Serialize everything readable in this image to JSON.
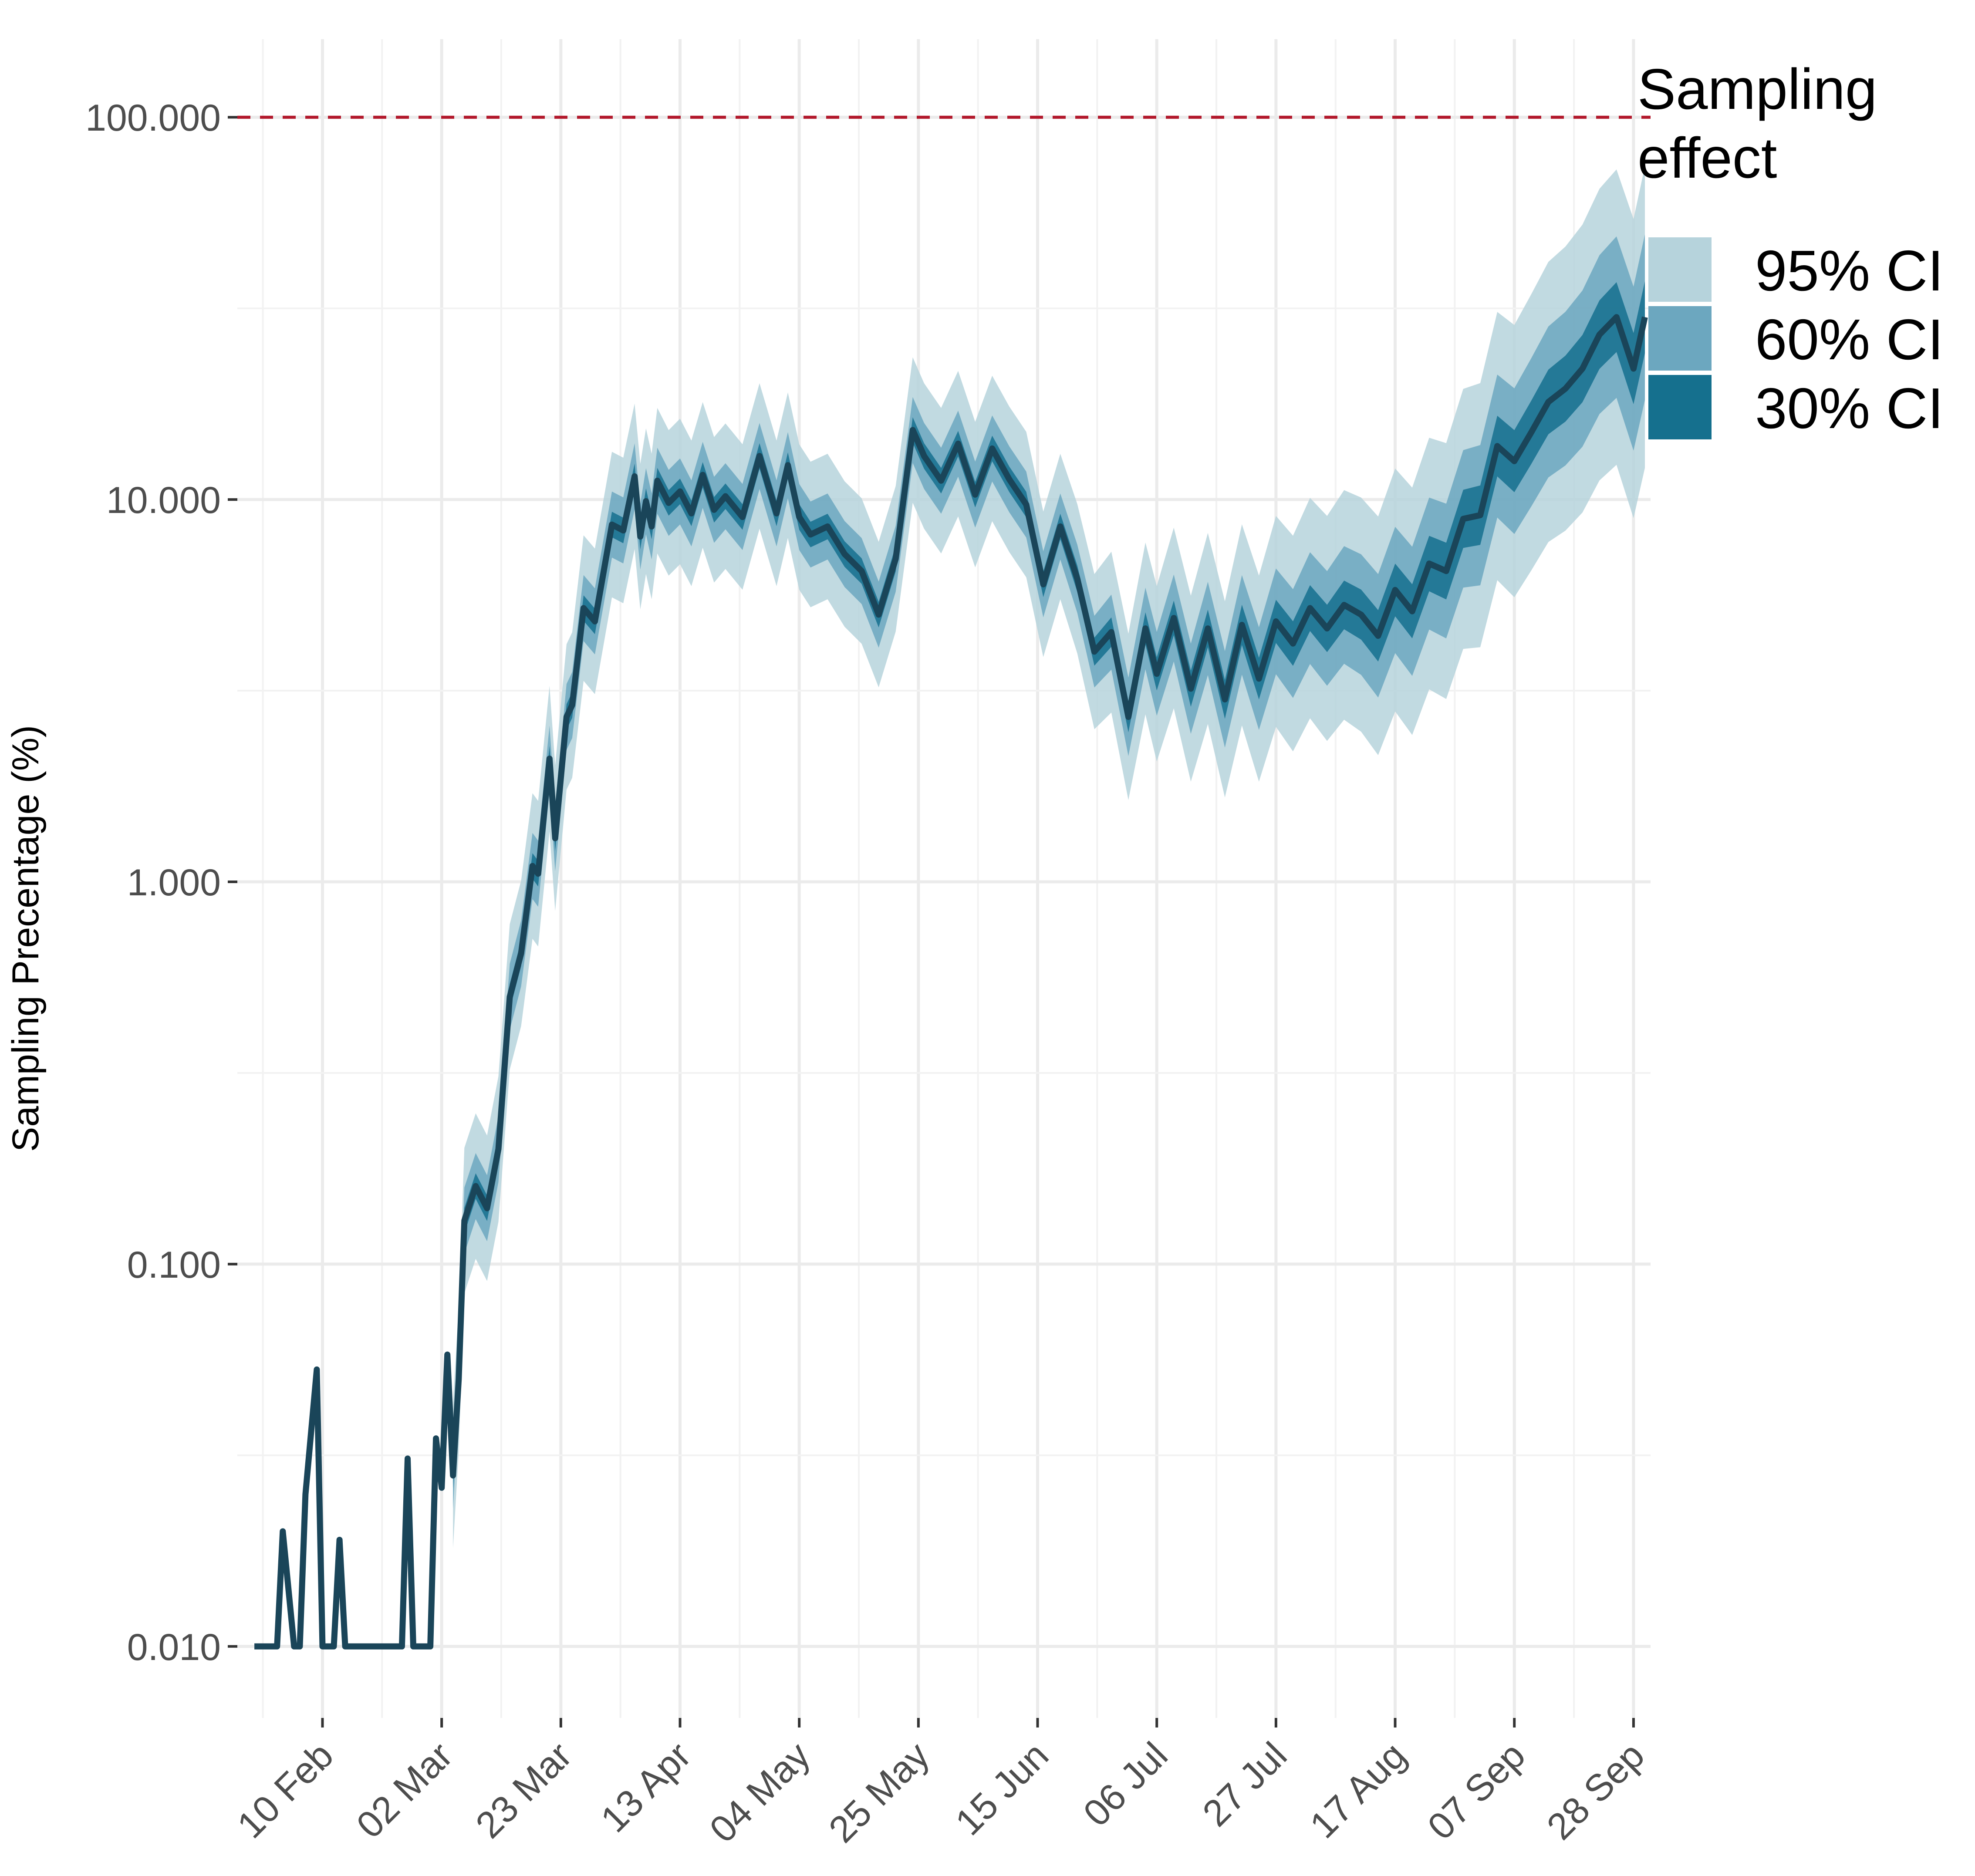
{
  "chart_data": {
    "type": "area",
    "title": "",
    "xlabel": "",
    "ylabel": "Sampling Precentage (%)",
    "y_scale": "log10",
    "ylim": [
      0.0065,
      160
    ],
    "xlim": [
      "2020-01-26",
      "2020-10-01"
    ],
    "y_ticks": [
      0.01,
      0.1,
      1,
      10,
      100
    ],
    "y_tick_labels": [
      "0.010",
      "0.100",
      "1.000",
      "10.000",
      "100.000"
    ],
    "x_ticks": [
      "2020-02-10",
      "2020-03-02",
      "2020-03-23",
      "2020-04-13",
      "2020-05-04",
      "2020-05-25",
      "2020-06-15",
      "2020-07-06",
      "2020-07-27",
      "2020-08-17",
      "2020-09-07",
      "2020-09-28"
    ],
    "x_tick_labels": [
      "10 Feb",
      "02 Mar",
      "23 Mar",
      "13 Apr",
      "04 May",
      "25 May",
      "15 Jun",
      "06 Jul",
      "27 Jul",
      "17 Aug",
      "07 Sep",
      "28 Sep"
    ],
    "grid": true,
    "reference_line": {
      "y": 100,
      "style": "dashed",
      "color": "#b2182b"
    },
    "legend": {
      "title": "Sampling\neffect",
      "position": "right",
      "entries": [
        {
          "label": "95% CI",
          "color": "#b6d3dc"
        },
        {
          "label": "60% CI",
          "color": "#6ca7bf"
        },
        {
          "label": "30% CI",
          "color": "#15708e"
        }
      ]
    },
    "colors": {
      "line": "#1a4559",
      "early_line": "#163140",
      "band95": "#b6d3dc",
      "band60": "#6ca7bf",
      "band30": "#15708e"
    },
    "series": [
      {
        "name": "median",
        "x": [
          "2020-01-29",
          "2020-02-02",
          "2020-02-03",
          "2020-02-05",
          "2020-02-06",
          "2020-02-07",
          "2020-02-09",
          "2020-02-10",
          "2020-02-12",
          "2020-02-13",
          "2020-02-14",
          "2020-02-15",
          "2020-02-16",
          "2020-02-18",
          "2020-02-20",
          "2020-02-22",
          "2020-02-24",
          "2020-02-25",
          "2020-02-26",
          "2020-02-27",
          "2020-02-28",
          "2020-02-29",
          "2020-03-01",
          "2020-03-02",
          "2020-03-03",
          "2020-03-04",
          "2020-03-05",
          "2020-03-06",
          "2020-03-08",
          "2020-03-10",
          "2020-03-12",
          "2020-03-14",
          "2020-03-16",
          "2020-03-18",
          "2020-03-19",
          "2020-03-21",
          "2020-03-22",
          "2020-03-24",
          "2020-03-25",
          "2020-03-27",
          "2020-03-29",
          "2020-04-01",
          "2020-04-03",
          "2020-04-05",
          "2020-04-06",
          "2020-04-07",
          "2020-04-08",
          "2020-04-09",
          "2020-04-11",
          "2020-04-13",
          "2020-04-15",
          "2020-04-17",
          "2020-04-19",
          "2020-04-21",
          "2020-04-24",
          "2020-04-27",
          "2020-04-30",
          "2020-05-02",
          "2020-05-04",
          "2020-05-06",
          "2020-05-09",
          "2020-05-12",
          "2020-05-15",
          "2020-05-18",
          "2020-05-21",
          "2020-05-24",
          "2020-05-26",
          "2020-05-29",
          "2020-06-01",
          "2020-06-04",
          "2020-06-07",
          "2020-06-10",
          "2020-06-13",
          "2020-06-16",
          "2020-06-19",
          "2020-06-22",
          "2020-06-25",
          "2020-06-28",
          "2020-07-01",
          "2020-07-04",
          "2020-07-06",
          "2020-07-09",
          "2020-07-12",
          "2020-07-15",
          "2020-07-18",
          "2020-07-21",
          "2020-07-24",
          "2020-07-27",
          "2020-07-30",
          "2020-08-02",
          "2020-08-05",
          "2020-08-08",
          "2020-08-11",
          "2020-08-14",
          "2020-08-17",
          "2020-08-20",
          "2020-08-23",
          "2020-08-26",
          "2020-08-29",
          "2020-09-01",
          "2020-09-04",
          "2020-09-07",
          "2020-09-10",
          "2020-09-13",
          "2020-09-16",
          "2020-09-19",
          "2020-09-22",
          "2020-09-25",
          "2020-09-28",
          "2020-09-30"
        ],
        "values": [
          0.01,
          0.01,
          0.02,
          0.01,
          0.01,
          0.025,
          0.053,
          0.01,
          0.01,
          0.019,
          0.01,
          0.01,
          0.01,
          0.01,
          0.01,
          0.01,
          0.01,
          0.031,
          0.01,
          0.01,
          0.01,
          0.01,
          0.035,
          0.026,
          0.058,
          0.028,
          0.05,
          0.13,
          0.16,
          0.14,
          0.2,
          0.5,
          0.65,
          1.1,
          1.05,
          2.1,
          1.3,
          2.7,
          2.9,
          5.2,
          4.8,
          8.6,
          8.3,
          11.5,
          8.0,
          9.9,
          8.5,
          11.2,
          9.8,
          10.5,
          9.2,
          11.6,
          9.4,
          10.2,
          9.0,
          13.0,
          9.2,
          12.3,
          9.0,
          8.1,
          8.5,
          7.2,
          6.5,
          5.0,
          7.0,
          15.2,
          13.0,
          11.2,
          14.0,
          10.3,
          13.6,
          11.3,
          9.7,
          6.0,
          8.5,
          6.2,
          4.0,
          4.5,
          2.7,
          4.6,
          3.5,
          4.9,
          3.2,
          4.6,
          3.0,
          4.7,
          3.4,
          4.8,
          4.2,
          5.2,
          4.6,
          5.3,
          5.0,
          4.4,
          5.8,
          5.1,
          6.8,
          6.5,
          8.9,
          9.1,
          13.8,
          12.6,
          15.0,
          18.0,
          19.5,
          22.0,
          27.0,
          30.0,
          22.0,
          30.0
        ]
      }
    ]
  }
}
